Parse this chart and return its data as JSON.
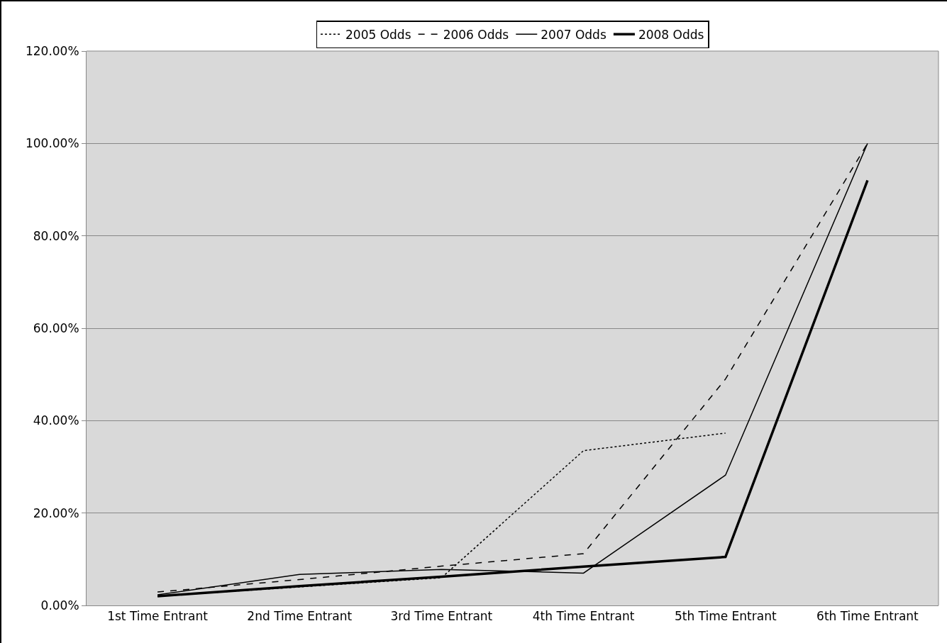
{
  "chart_data": {
    "type": "line",
    "categories": [
      "1st Time Entrant",
      "2nd Time Entrant",
      "3rd Time Entrant",
      "4th Time Entrant",
      "5th Time Entrant",
      "6th Time Entrant"
    ],
    "series": [
      {
        "name": "2005 Odds",
        "color": "#000000",
        "line_style": "dotted",
        "values": [
          2.0,
          4.0,
          6.0,
          33.5,
          37.3,
          null
        ]
      },
      {
        "name": "2006 Odds",
        "color": "#000000",
        "line_style": "dashed",
        "values": [
          2.9,
          5.6,
          8.5,
          11.2,
          49,
          100
        ]
      },
      {
        "name": "2007 Odds",
        "color": "#000000",
        "line_style": "solid",
        "values": [
          2.3,
          6.7,
          7.8,
          7.0,
          28.2,
          100
        ]
      },
      {
        "name": "2008 Odds",
        "color": "#000000",
        "line_style": "solid",
        "values": [
          2.0,
          4.2,
          6.2,
          8.4,
          10.5,
          92
        ]
      }
    ],
    "ylim": [
      0,
      120
    ],
    "yticks": [
      {
        "value": 0,
        "label": "0.00%"
      },
      {
        "value": 20,
        "label": "20.00%"
      },
      {
        "value": 40,
        "label": "40.00%"
      },
      {
        "value": 60,
        "label": "60.00%"
      },
      {
        "value": 80,
        "label": "80.00%"
      },
      {
        "value": 100,
        "label": "100.00%"
      },
      {
        "value": 120,
        "label": "120.00%"
      }
    ],
    "grid": "y",
    "legend": "top",
    "marker": "none"
  }
}
